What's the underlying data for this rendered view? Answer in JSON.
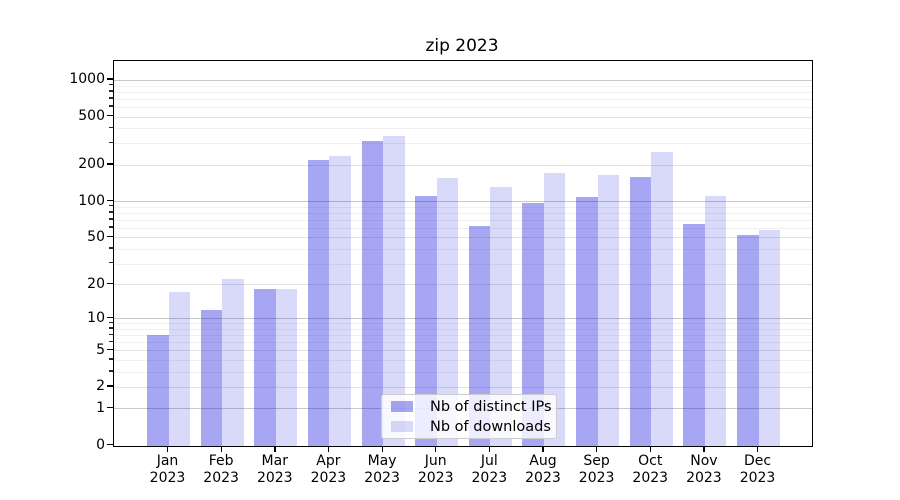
{
  "chart_data": {
    "type": "bar",
    "title": "zip 2023",
    "categories": [
      "Jan 2023",
      "Feb 2023",
      "Mar 2023",
      "Apr 2023",
      "May 2023",
      "Jun 2023",
      "Jul 2023",
      "Aug 2023",
      "Sep 2023",
      "Oct 2023",
      "Nov 2023",
      "Dec 2023"
    ],
    "months": [
      "Jan",
      "Feb",
      "Mar",
      "Apr",
      "May",
      "Jun",
      "Jul",
      "Aug",
      "Sep",
      "Oct",
      "Nov",
      "Dec"
    ],
    "year_label": "2023",
    "series": [
      {
        "name": "Nb of distinct IPs",
        "color": "rgba(20,20,220,0.38)",
        "values": [
          7,
          12,
          18,
          220,
          313,
          110,
          62,
          96,
          109,
          159,
          65,
          52
        ]
      },
      {
        "name": "Nb of downloads",
        "color": "rgba(20,20,220,0.16)",
        "values": [
          17,
          22,
          18,
          235,
          345,
          156,
          132,
          171,
          165,
          255,
          110,
          57
        ]
      }
    ],
    "y_axis": {
      "scale": "log10(value+1)",
      "tick_values": [
        0,
        1,
        2,
        5,
        10,
        20,
        50,
        100,
        200,
        500,
        1000
      ],
      "tick_labels": [
        "0",
        "1",
        "2",
        "5",
        "10",
        "20",
        "50",
        "100",
        "200",
        "500",
        "1000"
      ],
      "minor_gridline_values": [
        3,
        4,
        6,
        7,
        8,
        9,
        30,
        40,
        60,
        70,
        80,
        90,
        300,
        400,
        600,
        700,
        800,
        900
      ],
      "ylim_top": 1430
    },
    "grid": true,
    "legend": {
      "position": "lower-center",
      "entries": [
        "Nb of distinct IPs",
        "Nb of downloads"
      ]
    },
    "colors": {
      "major_gridline": "#c9c9c9",
      "labeled_gridline": "#e3e3e3",
      "minor_gridline": "#f0f0f0",
      "axis": "#000000"
    }
  }
}
